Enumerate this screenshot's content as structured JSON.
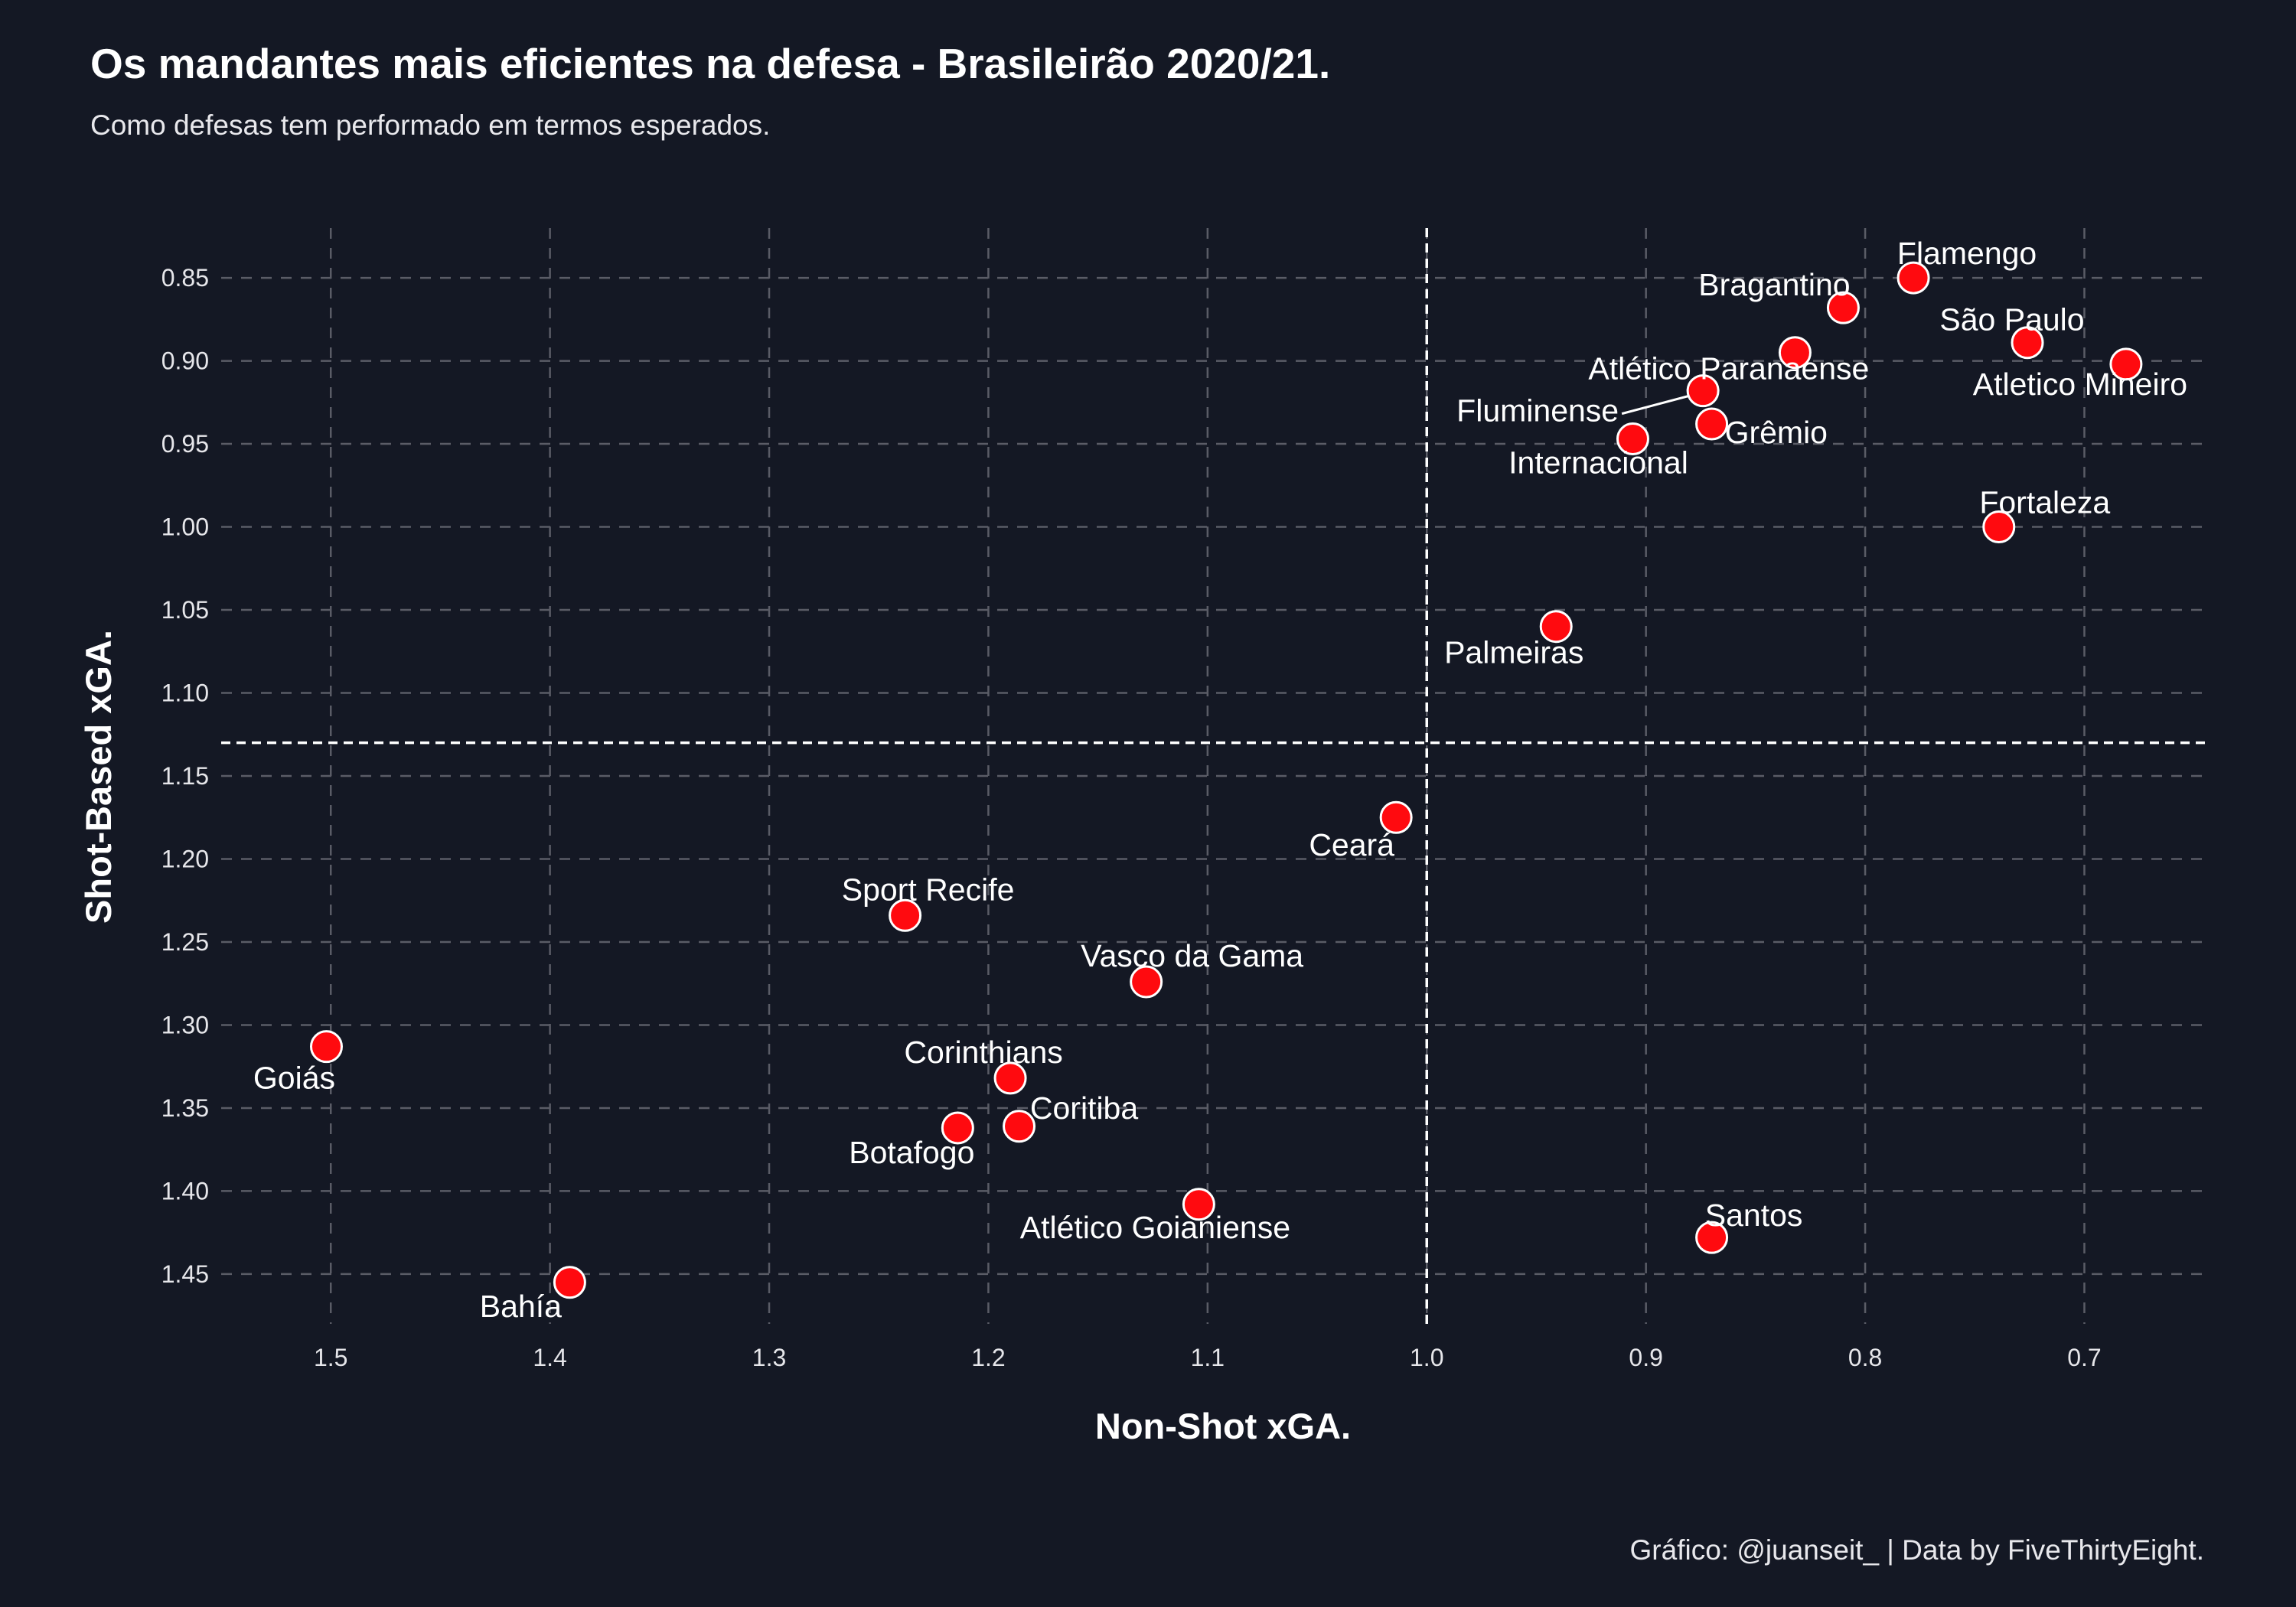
{
  "chart_data": {
    "type": "scatter",
    "title": "Os mandantes mais eficientes na defesa - Brasileirão 2020/21.",
    "subtitle": "Como defesas tem performado em termos esperados.",
    "xlabel": "Non-Shot xGA.",
    "ylabel": "Shot-Based xGA.",
    "caption": "Gráfico: @juanseit_ | Data by FiveThirtyEight.",
    "xlim": [
      1.55,
      0.645
    ],
    "ylim": [
      0.82,
      1.48
    ],
    "x_reversed": true,
    "y_reversed": true,
    "x_ticks": [
      1.5,
      1.4,
      1.3,
      1.2,
      1.1,
      1.0,
      0.9,
      0.8,
      0.7
    ],
    "x_tick_labels": [
      "1.5",
      "1.4",
      "1.3",
      "1.2",
      "1.1",
      "1.0",
      "0.9",
      "0.8",
      "0.7"
    ],
    "y_ticks": [
      0.85,
      0.9,
      0.95,
      1.0,
      1.05,
      1.1,
      1.15,
      1.2,
      1.25,
      1.3,
      1.35,
      1.4,
      1.45
    ],
    "y_tick_labels": [
      "0.85",
      "0.90",
      "0.95",
      "1.00",
      "1.05",
      "1.10",
      "1.15",
      "1.20",
      "1.25",
      "1.30",
      "1.35",
      "1.40",
      "1.45"
    ],
    "reference_lines": {
      "x": 1.0,
      "y": 1.13
    },
    "grid": true,
    "colors": {
      "background": "#141824",
      "point": "#ff0a0f",
      "grid": "#5a5c66",
      "text": "#ffffff"
    },
    "points": [
      {
        "label": "Flamengo",
        "x": 0.778,
        "y": 0.85,
        "label_pos": "above"
      },
      {
        "label": "Bragantino",
        "x": 0.81,
        "y": 0.868,
        "label_pos": "above-left"
      },
      {
        "label": "São Paulo",
        "x": 0.726,
        "y": 0.889,
        "label_pos": "above-left"
      },
      {
        "label": "Atletico Mineiro",
        "x": 0.681,
        "y": 0.902,
        "label_pos": "below-left"
      },
      {
        "label": "Atlético Paranaense",
        "x": 0.832,
        "y": 0.895,
        "label_pos": "below-right"
      },
      {
        "label": "Fluminense",
        "x": 0.874,
        "y": 0.918,
        "label_pos": "left-leader"
      },
      {
        "label": "Grêmio",
        "x": 0.87,
        "y": 0.938,
        "label_pos": "right"
      },
      {
        "label": "Internacional",
        "x": 0.906,
        "y": 0.947,
        "label_pos": "below-left"
      },
      {
        "label": "Fortaleza",
        "x": 0.739,
        "y": 1.0,
        "label_pos": "above-right"
      },
      {
        "label": "Palmeiras",
        "x": 0.941,
        "y": 1.06,
        "label_pos": "below-left"
      },
      {
        "label": "Ceará",
        "x": 1.014,
        "y": 1.175,
        "label_pos": "below-left"
      },
      {
        "label": "Sport Recife",
        "x": 1.238,
        "y": 1.234,
        "label_pos": "above-right"
      },
      {
        "label": "Vasco da Gama",
        "x": 1.128,
        "y": 1.274,
        "label_pos": "above-right"
      },
      {
        "label": "Goiás",
        "x": 1.502,
        "y": 1.313,
        "label_pos": "below-left"
      },
      {
        "label": "Corinthians",
        "x": 1.19,
        "y": 1.332,
        "label_pos": "above-left"
      },
      {
        "label": "Coritiba",
        "x": 1.186,
        "y": 1.361,
        "label_pos": "above-right"
      },
      {
        "label": "Botafogo",
        "x": 1.214,
        "y": 1.362,
        "label_pos": "below-left"
      },
      {
        "label": "Atlético Goianiense",
        "x": 1.104,
        "y": 1.408,
        "label_pos": "below-left"
      },
      {
        "label": "Santos",
        "x": 0.87,
        "y": 1.428,
        "label_pos": "above-right"
      },
      {
        "label": "Bahía",
        "x": 1.391,
        "y": 1.455,
        "label_pos": "below-left"
      }
    ]
  }
}
